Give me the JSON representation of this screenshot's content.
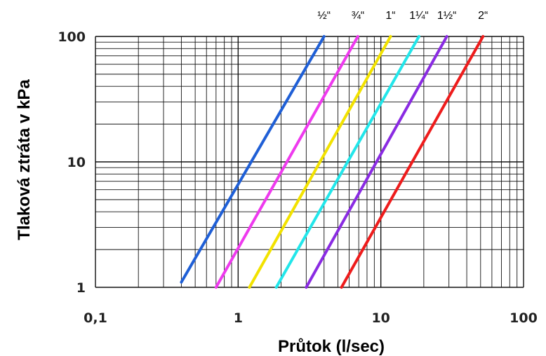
{
  "chart_data": {
    "type": "line",
    "title": "",
    "xlabel": "Průtok (l/sec)",
    "ylabel": "Tlaková ztráta v kPa",
    "x_scale": "log",
    "y_scale": "log",
    "xlim": [
      0.1,
      100
    ],
    "ylim": [
      1,
      100
    ],
    "grid": true,
    "x_ticks": [
      {
        "value": 0.1,
        "label": "0,1"
      },
      {
        "value": 1,
        "label": "1"
      },
      {
        "value": 10,
        "label": "10"
      },
      {
        "value": 100,
        "label": "100"
      }
    ],
    "y_ticks": [
      {
        "value": 1,
        "label": "1"
      },
      {
        "value": 10,
        "label": "10"
      },
      {
        "value": 100,
        "label": "100"
      }
    ],
    "series": [
      {
        "name": "½“",
        "color": "#1f5fd6",
        "x": [
          0.4,
          4.0
        ],
        "y": [
          1.1,
          100
        ]
      },
      {
        "name": "¾“",
        "color": "#ee3aee",
        "x": [
          0.7,
          6.9
        ],
        "y": [
          1.0,
          100
        ]
      },
      {
        "name": "1“",
        "color": "#f2e200",
        "x": [
          1.2,
          11.7
        ],
        "y": [
          1.0,
          100
        ]
      },
      {
        "name": "1¼“",
        "color": "#22e6ea",
        "x": [
          1.85,
          18.5
        ],
        "y": [
          1.0,
          100
        ]
      },
      {
        "name": "1½“",
        "color": "#8a2be2",
        "x": [
          3.0,
          29.0
        ],
        "y": [
          1.0,
          100
        ]
      },
      {
        "name": "2“",
        "color": "#ee1c1c",
        "x": [
          5.3,
          52.0
        ],
        "y": [
          1.0,
          100
        ]
      }
    ]
  }
}
